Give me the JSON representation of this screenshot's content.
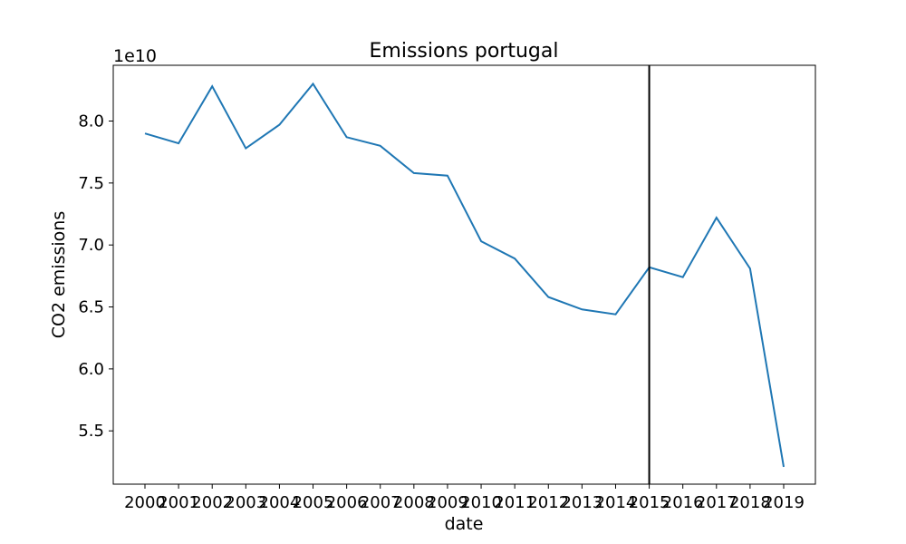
{
  "chart_data": {
    "type": "line",
    "title": "Emissions portugal",
    "xlabel": "date",
    "ylabel": "CO2 emissions",
    "y_offset_label": "1e10",
    "categories": [
      "2000",
      "2001",
      "2002",
      "2003",
      "2004",
      "2005",
      "2006",
      "2007",
      "2008",
      "2009",
      "2010",
      "2011",
      "2012",
      "2013",
      "2014",
      "2015",
      "2016",
      "2017",
      "2018",
      "2019"
    ],
    "series": [
      {
        "values": [
          79000000000.0,
          78200000000.0,
          82800000000.0,
          77800000000.0,
          79700000000.0,
          83000000000.0,
          78700000000.0,
          78000000000.0,
          75800000000.0,
          75600000000.0,
          70300000000.0,
          68900000000.0,
          65800000000.0,
          64800000000.0,
          64400000000.0,
          68200000000.0,
          67400000000.0,
          72200000000.0,
          68100000000.0,
          52100000000.0
        ],
        "color": "#1f77b4"
      }
    ],
    "yticks": [
      5.5,
      6.0,
      6.5,
      7.0,
      7.5,
      8.0
    ],
    "ytick_labels": [
      "5.5",
      "6.0",
      "6.5",
      "7.0",
      "7.5",
      "8.0"
    ],
    "ylim": [
      50700000000.0,
      84500000000.0
    ],
    "vline": {
      "x": "2015",
      "color": "#000000"
    },
    "grid": false,
    "legend": "none"
  }
}
